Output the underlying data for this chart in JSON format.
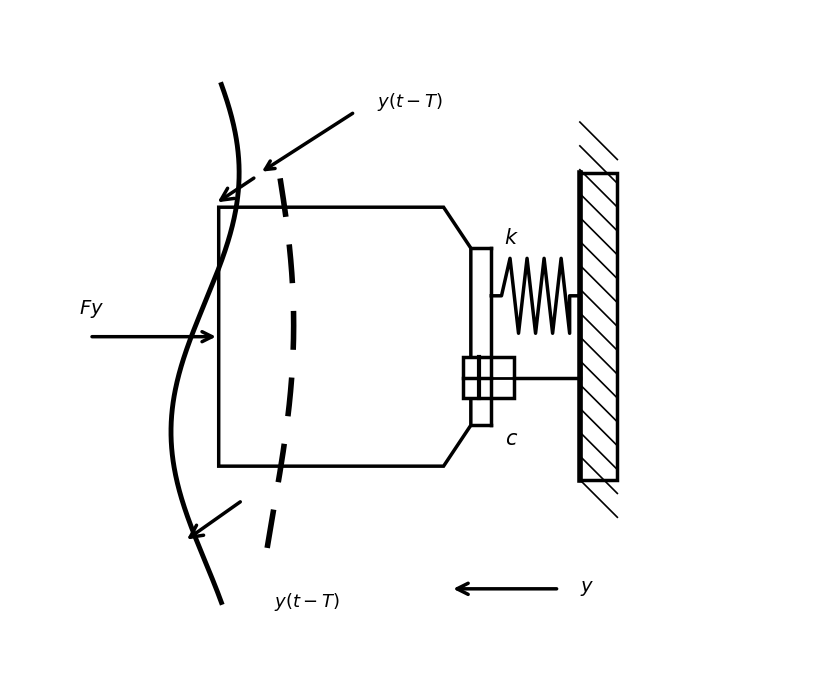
{
  "bg_color": "#ffffff",
  "line_color": "#000000",
  "lw": 2.5,
  "fig_width": 8.19,
  "fig_height": 6.87,
  "dpi": 100
}
